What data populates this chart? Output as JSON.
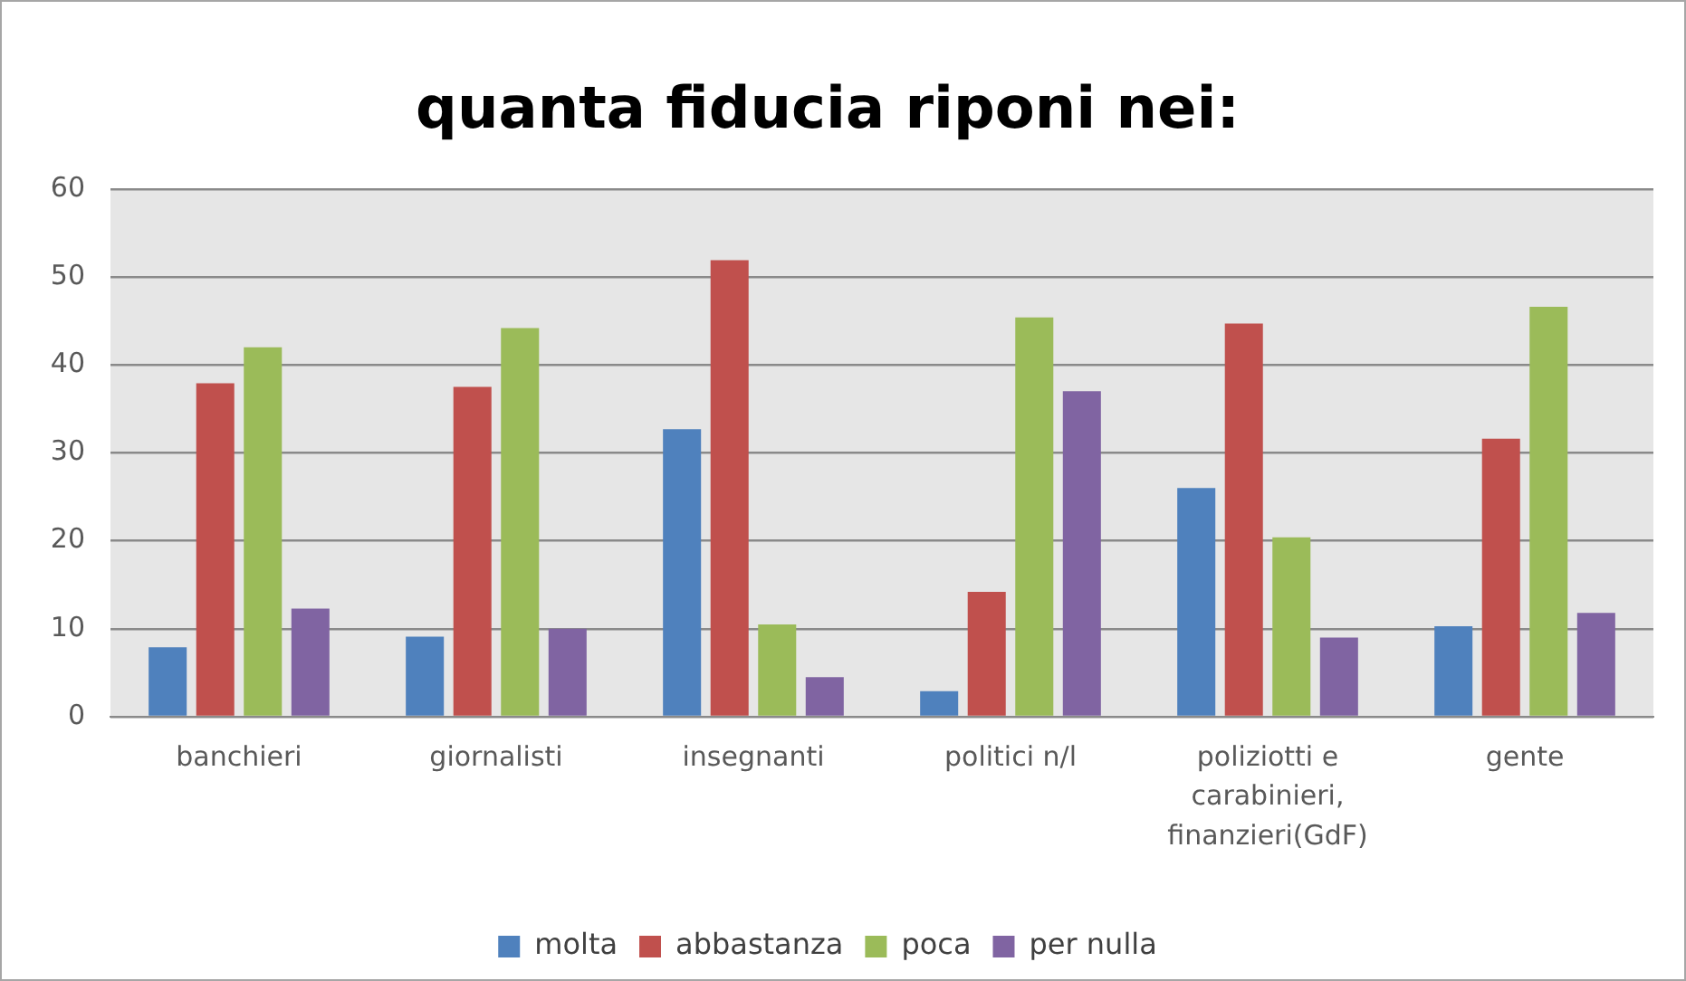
{
  "chart_data": {
    "type": "bar",
    "title": "quanta fiducia riponi nei:",
    "categories": [
      "banchieri",
      "giornalisti",
      "insegnanti",
      "politici n/l",
      "poliziotti e carabinieri, finanzieri(GdF)",
      "gente"
    ],
    "series": [
      {
        "name": "molta",
        "color": "#4f81bd",
        "values": [
          7.9,
          9.1,
          32.7,
          2.9,
          26,
          10.3
        ]
      },
      {
        "name": "abbastanza",
        "color": "#c0504d",
        "values": [
          37.9,
          37.5,
          51.9,
          14.2,
          44.7,
          31.6
        ]
      },
      {
        "name": "poca",
        "color": "#9bbb59",
        "values": [
          42,
          44.2,
          10.5,
          45.4,
          20.4,
          46.6
        ]
      },
      {
        "name": "per nulla",
        "color": "#8064a2",
        "values": [
          12.3,
          10,
          4.5,
          37,
          9,
          11.8
        ]
      }
    ],
    "ylim": [
      0,
      60
    ],
    "yticks": [
      0,
      10,
      20,
      30,
      40,
      50,
      60
    ],
    "grid": "y",
    "legend": "bottom"
  }
}
